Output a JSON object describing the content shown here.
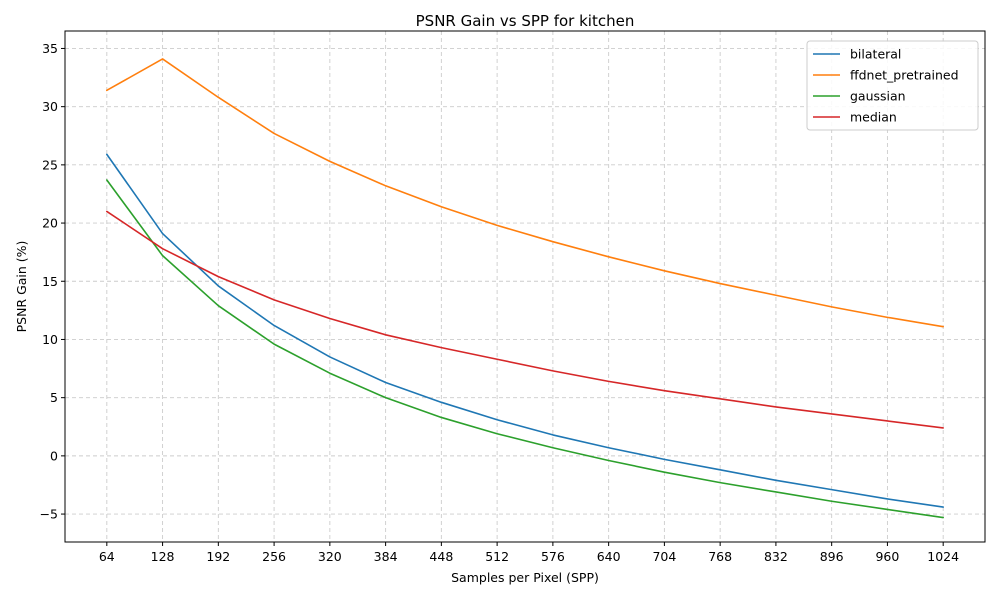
{
  "chart_data": {
    "type": "line",
    "title": "PSNR Gain vs SPP for kitchen",
    "xlabel": "Samples per Pixel (SPP)",
    "ylabel": "PSNR Gain (%)",
    "x": [
      64,
      128,
      192,
      256,
      320,
      384,
      448,
      512,
      576,
      640,
      704,
      768,
      832,
      896,
      960,
      1024
    ],
    "x_ticks": [
      "64",
      "128",
      "192",
      "256",
      "320",
      "384",
      "448",
      "512",
      "576",
      "640",
      "704",
      "768",
      "832",
      "896",
      "960",
      "1024"
    ],
    "y_ticks": [
      -5,
      0,
      5,
      10,
      15,
      20,
      25,
      30,
      35
    ],
    "y_tick_labels": [
      "−5",
      "0",
      "5",
      "10",
      "15",
      "20",
      "25",
      "30",
      "35"
    ],
    "xlim": [
      16,
      1072
    ],
    "ylim": [
      -7.4,
      36.5
    ],
    "grid": true,
    "legend_position": "top-right",
    "series": [
      {
        "name": "bilateral",
        "color": "#1f77b4",
        "values": [
          25.9,
          19.1,
          14.6,
          11.2,
          8.5,
          6.3,
          4.6,
          3.1,
          1.8,
          0.7,
          -0.3,
          -1.2,
          -2.1,
          -2.9,
          -3.7,
          -4.4
        ]
      },
      {
        "name": "ffdnet_pretrained",
        "color": "#ff7f0e",
        "values": [
          31.4,
          34.1,
          30.8,
          27.7,
          25.3,
          23.2,
          21.4,
          19.8,
          18.4,
          17.1,
          15.9,
          14.8,
          13.8,
          12.8,
          11.9,
          11.1
        ]
      },
      {
        "name": "gaussian",
        "color": "#2ca02c",
        "values": [
          23.7,
          17.2,
          12.9,
          9.6,
          7.1,
          5.0,
          3.3,
          1.9,
          0.7,
          -0.4,
          -1.4,
          -2.3,
          -3.1,
          -3.9,
          -4.6,
          -5.3
        ]
      },
      {
        "name": "median",
        "color": "#d62728",
        "values": [
          21.0,
          17.8,
          15.4,
          13.4,
          11.8,
          10.4,
          9.3,
          8.3,
          7.3,
          6.4,
          5.6,
          4.9,
          4.2,
          3.6,
          3.0,
          2.4
        ]
      }
    ]
  }
}
